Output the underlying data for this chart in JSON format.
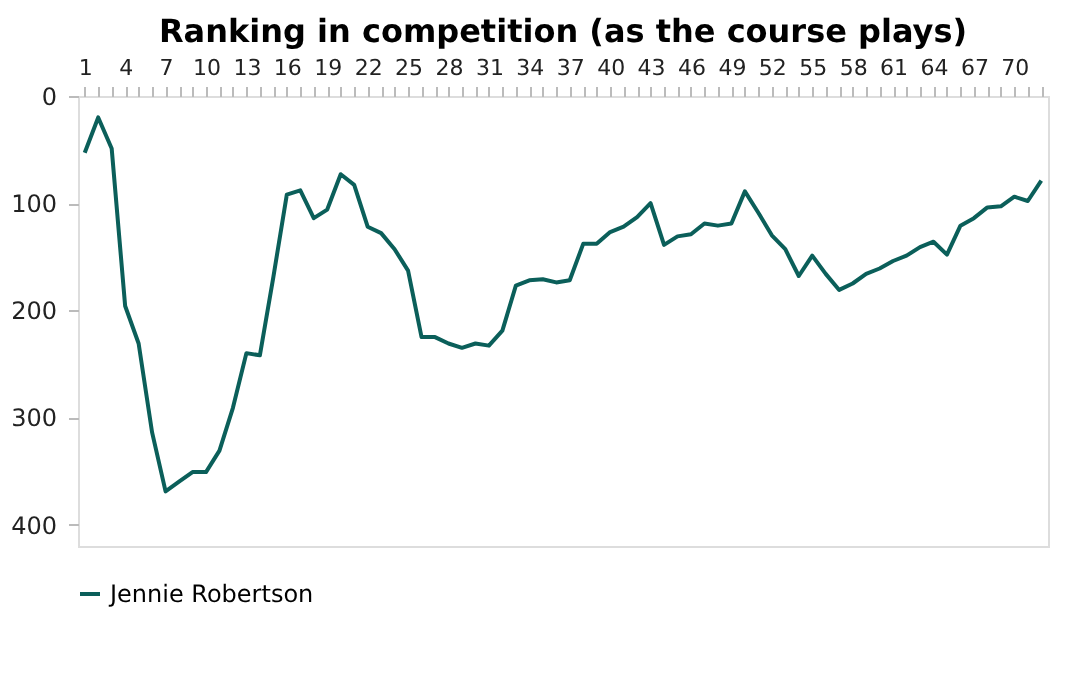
{
  "chart_data": {
    "type": "line",
    "title": "Ranking in competition (as the course plays)",
    "x": [
      1,
      2,
      3,
      4,
      5,
      6,
      7,
      8,
      9,
      10,
      11,
      12,
      13,
      14,
      15,
      16,
      17,
      18,
      19,
      20,
      21,
      22,
      23,
      24,
      25,
      26,
      27,
      28,
      29,
      30,
      31,
      32,
      33,
      34,
      35,
      36,
      37,
      38,
      39,
      40,
      41,
      42,
      43,
      44,
      45,
      46,
      47,
      48,
      49,
      50,
      51,
      52,
      53,
      54,
      55,
      56,
      57,
      58,
      59,
      60,
      61,
      62,
      63,
      64,
      65,
      66,
      67,
      68,
      69,
      70,
      71,
      72
    ],
    "series": [
      {
        "name": "Jennie Robertson",
        "color": "#0b5f5a",
        "values": [
          53,
          20,
          49,
          196,
          231,
          314,
          369,
          360,
          351,
          351,
          331,
          291,
          240,
          242,
          169,
          92,
          88,
          114,
          106,
          73,
          83,
          122,
          128,
          143,
          163,
          225,
          225,
          231,
          235,
          231,
          233,
          219,
          177,
          172,
          171,
          174,
          172,
          138,
          138,
          127,
          122,
          113,
          100,
          139,
          131,
          129,
          119,
          121,
          119,
          89,
          109,
          130,
          143,
          168,
          149,
          166,
          181,
          175,
          166,
          161,
          154,
          149,
          141,
          136,
          148,
          121,
          114,
          104,
          103,
          94,
          98,
          79
        ]
      }
    ],
    "xlim": [
      0.5,
      72.5
    ],
    "xticks": [
      1,
      {
        "value": 2,
        "label": null
      },
      {
        "value": 3,
        "label": null
      },
      4,
      {
        "value": 5,
        "label": null
      },
      {
        "value": 6,
        "label": null
      },
      7,
      {
        "value": 8,
        "label": null
      },
      {
        "value": 9,
        "label": null
      },
      10,
      {
        "value": 11,
        "label": null
      },
      {
        "value": 12,
        "label": null
      },
      13,
      {
        "value": 14,
        "label": null
      },
      {
        "value": 15,
        "label": null
      },
      16,
      {
        "value": 17,
        "label": null
      },
      {
        "value": 18,
        "label": null
      },
      19,
      {
        "value": 20,
        "label": null
      },
      {
        "value": 21,
        "label": null
      },
      22,
      {
        "value": 23,
        "label": null
      },
      {
        "value": 24,
        "label": null
      },
      25,
      {
        "value": 26,
        "label": null
      },
      {
        "value": 27,
        "label": null
      },
      28,
      {
        "value": 29,
        "label": null
      },
      {
        "value": 30,
        "label": null
      },
      31,
      {
        "value": 32,
        "label": null
      },
      {
        "value": 33,
        "label": null
      },
      34,
      {
        "value": 35,
        "label": null
      },
      {
        "value": 36,
        "label": null
      },
      37,
      {
        "value": 38,
        "label": null
      },
      {
        "value": 39,
        "label": null
      },
      40,
      {
        "value": 41,
        "label": null
      },
      {
        "value": 42,
        "label": null
      },
      43,
      {
        "value": 44,
        "label": null
      },
      {
        "value": 45,
        "label": null
      },
      46,
      {
        "value": 47,
        "label": null
      },
      {
        "value": 48,
        "label": null
      },
      49,
      {
        "value": 50,
        "label": null
      },
      {
        "value": 51,
        "label": null
      },
      52,
      {
        "value": 53,
        "label": null
      },
      {
        "value": 54,
        "label": null
      },
      55,
      {
        "value": 56,
        "label": null
      },
      {
        "value": 57,
        "label": null
      },
      58,
      {
        "value": 59,
        "label": null
      },
      {
        "value": 60,
        "label": null
      },
      61,
      {
        "value": 62,
        "label": null
      },
      {
        "value": 63,
        "label": null
      },
      64,
      {
        "value": 65,
        "label": null
      },
      {
        "value": 66,
        "label": null
      },
      67,
      {
        "value": 68,
        "label": null
      },
      {
        "value": 69,
        "label": null
      },
      70,
      {
        "value": 71,
        "label": null
      },
      {
        "value": 72,
        "label": null
      }
    ],
    "ylim": [
      420,
      0
    ],
    "yticks": [
      0,
      100,
      200,
      300,
      400
    ],
    "grid": false,
    "legend": "bottom",
    "marker": "none",
    "line_style": "solid"
  }
}
